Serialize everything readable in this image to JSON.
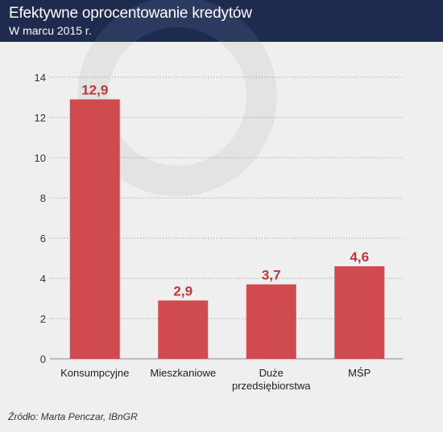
{
  "header": {
    "title": "Efektywne oprocentowanie kredytów",
    "subtitle": "W marcu 2015 r."
  },
  "source": "Źródło: Marta Penczar, IBnGR",
  "colors": {
    "header_bg": "#1e2a4e",
    "bar": "#cf4b4f",
    "value_label": "#c0353b",
    "background": "#efefef"
  },
  "chart_data": {
    "type": "bar",
    "categories": [
      [
        "Konsumpcyjne"
      ],
      [
        "Mieszkaniowe"
      ],
      [
        "Duże",
        "przedsiębiorstwa"
      ],
      [
        "MŚP"
      ]
    ],
    "values": [
      12.9,
      2.9,
      3.7,
      4.6
    ],
    "value_labels": [
      "12,9",
      "2,9",
      "3,7",
      "4,6"
    ],
    "yticks": [
      0,
      2,
      4,
      6,
      8,
      10,
      12,
      14
    ],
    "ylim": [
      0,
      14
    ],
    "grid": true,
    "legend": "none"
  }
}
